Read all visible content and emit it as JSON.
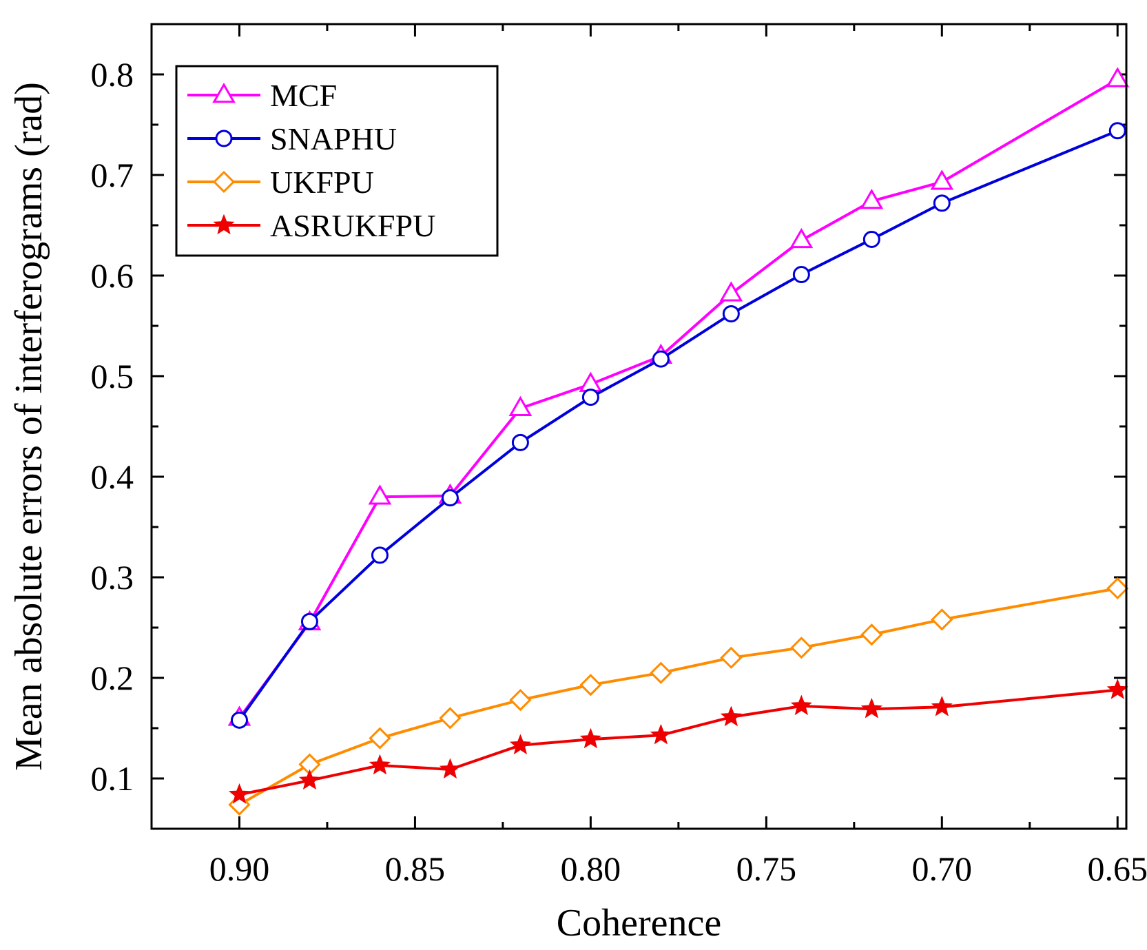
{
  "chart_data": {
    "type": "line",
    "title": "",
    "xlabel": "Coherence",
    "ylabel": "Mean absolute errors of interferograms (rad)",
    "x": [
      0.9,
      0.88,
      0.86,
      0.84,
      0.82,
      0.8,
      0.78,
      0.76,
      0.74,
      0.72,
      0.7,
      0.65
    ],
    "xlim": [
      0.925,
      0.6475
    ],
    "ylim": [
      0.05,
      0.85
    ],
    "x_reversed": true,
    "xticks": [
      0.9,
      0.85,
      0.8,
      0.75,
      0.7,
      0.65
    ],
    "xtick_labels": [
      "0.90",
      "0.85",
      "0.80",
      "0.75",
      "0.70",
      "0.65"
    ],
    "yticks": [
      0.1,
      0.2,
      0.3,
      0.4,
      0.5,
      0.6,
      0.7,
      0.8
    ],
    "ytick_labels": [
      "0.1",
      "0.2",
      "0.3",
      "0.4",
      "0.5",
      "0.6",
      "0.7",
      "0.8"
    ],
    "grid": false,
    "legend_position": "top-left",
    "series": [
      {
        "name": "MCF",
        "color": "#ff00ff",
        "marker": "triangle",
        "values": [
          0.16,
          0.255,
          0.38,
          0.381,
          0.468,
          0.492,
          0.52,
          0.582,
          0.635,
          0.674,
          0.693,
          0.795
        ]
      },
      {
        "name": "SNAPHU",
        "color": "#0000dd",
        "marker": "circle",
        "values": [
          0.158,
          0.256,
          0.322,
          0.379,
          0.434,
          0.479,
          0.517,
          0.562,
          0.601,
          0.636,
          0.672,
          0.744
        ]
      },
      {
        "name": "UKFPU",
        "color": "#ff8c00",
        "marker": "diamond",
        "values": [
          0.074,
          0.114,
          0.14,
          0.16,
          0.178,
          0.193,
          0.205,
          0.22,
          0.23,
          0.243,
          0.258,
          0.289
        ]
      },
      {
        "name": "ASRUKFPU",
        "color": "#ee0000",
        "marker": "star",
        "values": [
          0.084,
          0.098,
          0.113,
          0.109,
          0.133,
          0.139,
          0.143,
          0.161,
          0.172,
          0.169,
          0.171,
          0.188
        ]
      }
    ]
  }
}
